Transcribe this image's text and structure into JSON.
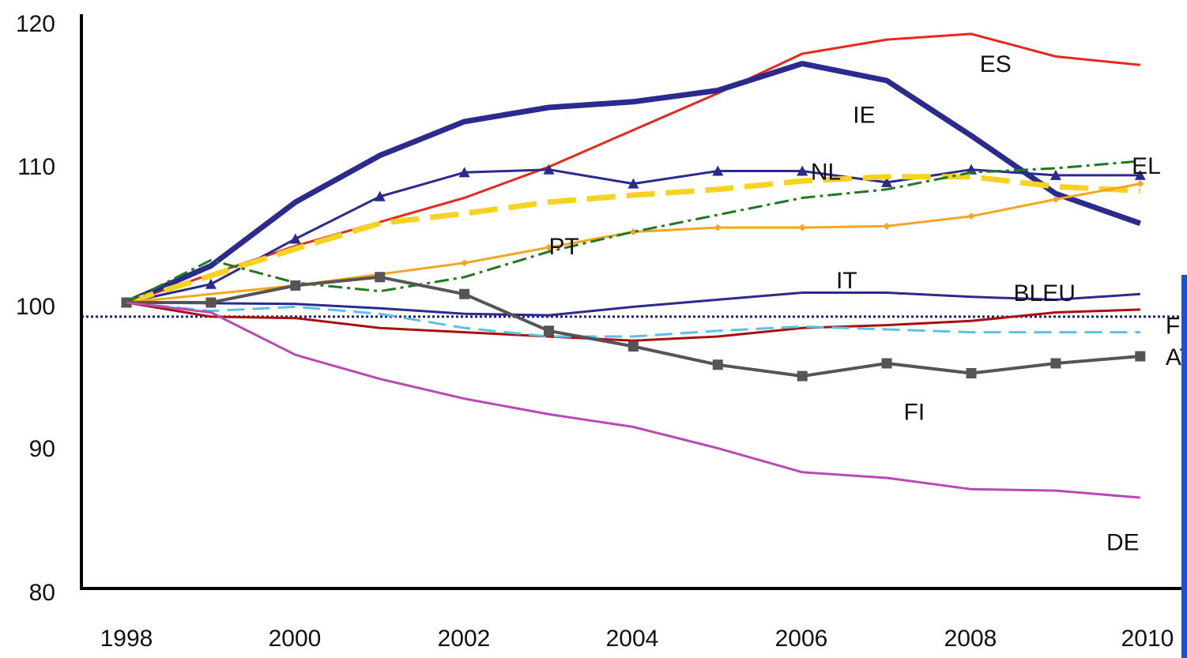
{
  "chart_data": {
    "type": "line",
    "title": "",
    "xlabel": "",
    "ylabel": "",
    "xlim": [
      1998,
      2010
    ],
    "ylim": [
      80,
      120
    ],
    "x_ticks": [
      "1998",
      "2000",
      "2002",
      "2004",
      "2006",
      "2008",
      "2010"
    ],
    "y_ticks": [
      "80",
      "90",
      "100",
      "110",
      "120"
    ],
    "reference_line": {
      "y": 99,
      "color": "#1c1c8c",
      "style": "dotted"
    },
    "series": [
      {
        "name": "ES",
        "color": "#e8281c",
        "width": 3,
        "dash": "",
        "marker": "none",
        "points": [
          [
            1998,
            100
          ],
          [
            2000,
            104
          ],
          [
            2002,
            107.4
          ],
          [
            2003,
            109.6
          ],
          [
            2004,
            112.2
          ],
          [
            2005,
            114.8
          ],
          [
            2006,
            117.6
          ],
          [
            2007,
            118.6
          ],
          [
            2008,
            119
          ],
          [
            2009,
            117.4
          ],
          [
            2010,
            116.8
          ]
        ]
      },
      {
        "name": "IE",
        "color": "#2b2a8f",
        "width": 7,
        "dash": "",
        "marker": "none",
        "points": [
          [
            1998,
            100
          ],
          [
            1999,
            102.6
          ],
          [
            2000,
            107.1
          ],
          [
            2001,
            110.4
          ],
          [
            2002,
            112.8
          ],
          [
            2003,
            113.8
          ],
          [
            2004,
            114.2
          ],
          [
            2005,
            115
          ],
          [
            2006,
            116.9
          ],
          [
            2007,
            115.7
          ],
          [
            2008,
            111.8
          ],
          [
            2009,
            107.7
          ],
          [
            2010,
            105.6
          ]
        ]
      },
      {
        "name": "EL",
        "color": "#2b2a8f",
        "width": 3,
        "dash": "",
        "marker": "triangle",
        "points": [
          [
            1998,
            100
          ],
          [
            1999,
            101.3
          ],
          [
            2000,
            104.5
          ],
          [
            2001,
            107.5
          ],
          [
            2002,
            109.2
          ],
          [
            2003,
            109.4
          ],
          [
            2004,
            108.4
          ],
          [
            2005,
            109.3
          ],
          [
            2006,
            109.3
          ],
          [
            2007,
            108.5
          ],
          [
            2008,
            109.4
          ],
          [
            2009,
            109
          ],
          [
            2010,
            109
          ]
        ]
      },
      {
        "name": "NL",
        "color": "#f5d31e",
        "width": 7,
        "dash": "36 14",
        "marker": "none",
        "points": [
          [
            1998,
            100
          ],
          [
            2000,
            103.8
          ],
          [
            2001,
            105.6
          ],
          [
            2002,
            106.3
          ],
          [
            2003,
            107.1
          ],
          [
            2004,
            107.6
          ],
          [
            2005,
            108
          ],
          [
            2006,
            108.6
          ],
          [
            2007,
            108.9
          ],
          [
            2008,
            108.9
          ],
          [
            2009,
            108.2
          ],
          [
            2010,
            107.9
          ]
        ]
      },
      {
        "name": "PT",
        "color": "#f5a51f",
        "width": 3,
        "dash": "",
        "marker": "diamond",
        "points": [
          [
            1998,
            100
          ],
          [
            2000,
            101.2
          ],
          [
            2002,
            102.8
          ],
          [
            2003,
            103.9
          ],
          [
            2004,
            105
          ],
          [
            2005,
            105.3
          ],
          [
            2006,
            105.3
          ],
          [
            2007,
            105.4
          ],
          [
            2008,
            106.1
          ],
          [
            2009,
            107.3
          ],
          [
            2010,
            108.4
          ]
        ]
      },
      {
        "name": "",
        "color": "#1f7a1f",
        "width": 3,
        "dash": "18 6 4 6",
        "marker": "none",
        "points": [
          [
            1998,
            100
          ],
          [
            1999,
            103
          ],
          [
            2000,
            101.4
          ],
          [
            2001,
            100.8
          ],
          [
            2002,
            101.8
          ],
          [
            2003,
            103.6
          ],
          [
            2004,
            105
          ],
          [
            2005,
            106.2
          ],
          [
            2006,
            107.4
          ],
          [
            2007,
            108
          ],
          [
            2008,
            109.2
          ],
          [
            2009,
            109.5
          ],
          [
            2010,
            110
          ]
        ]
      },
      {
        "name": "IT",
        "color": "#2b2a8f",
        "width": 3,
        "dash": "",
        "marker": "none",
        "points": [
          [
            1998,
            100
          ],
          [
            2000,
            99.9
          ],
          [
            2001,
            99.6
          ],
          [
            2002,
            99.2
          ],
          [
            2003,
            99.1
          ],
          [
            2004,
            99.7
          ],
          [
            2005,
            100.2
          ],
          [
            2006,
            100.7
          ],
          [
            2007,
            100.7
          ],
          [
            2008,
            100.4
          ],
          [
            2009,
            100.2
          ],
          [
            2010,
            100.6
          ]
        ]
      },
      {
        "name": "FR",
        "color": "#a81010",
        "width": 3,
        "dash": "",
        "marker": "none",
        "points": [
          [
            1998,
            100
          ],
          [
            1999,
            99
          ],
          [
            2000,
            98.9
          ],
          [
            2001,
            98.2
          ],
          [
            2002,
            97.9
          ],
          [
            2003,
            97.6
          ],
          [
            2004,
            97.3
          ],
          [
            2005,
            97.6
          ],
          [
            2006,
            98.2
          ],
          [
            2007,
            98.4
          ],
          [
            2008,
            98.7
          ],
          [
            2009,
            99.3
          ],
          [
            2010,
            99.5
          ]
        ]
      },
      {
        "name": "BLEU",
        "color": "#5bc0e8",
        "width": 3,
        "dash": "22 10",
        "marker": "none",
        "points": [
          [
            1998,
            100
          ],
          [
            1999,
            99.4
          ],
          [
            2000,
            99.7
          ],
          [
            2001,
            99.2
          ],
          [
            2002,
            98.2
          ],
          [
            2003,
            97.6
          ],
          [
            2004,
            97.6
          ],
          [
            2005,
            98
          ],
          [
            2006,
            98.3
          ],
          [
            2007,
            98.1
          ],
          [
            2008,
            97.9
          ],
          [
            2009,
            97.9
          ],
          [
            2010,
            97.9
          ]
        ]
      },
      {
        "name": "FI",
        "color": "#555555",
        "width": 4,
        "dash": "",
        "marker": "square",
        "points": [
          [
            1998,
            100
          ],
          [
            1999,
            100
          ],
          [
            2000,
            101.2
          ],
          [
            2001,
            101.8
          ],
          [
            2002,
            100.6
          ],
          [
            2003,
            98
          ],
          [
            2004,
            96.9
          ],
          [
            2005,
            95.6
          ],
          [
            2006,
            94.8
          ],
          [
            2007,
            95.7
          ],
          [
            2008,
            95
          ],
          [
            2009,
            95.7
          ],
          [
            2010,
            96.2
          ]
        ]
      },
      {
        "name": "DE",
        "color": "#b84ab5",
        "width": 3,
        "dash": "",
        "marker": "none",
        "points": [
          [
            1998,
            100
          ],
          [
            1999,
            99.3
          ],
          [
            2000,
            96.3
          ],
          [
            2001,
            94.6
          ],
          [
            2002,
            93.2
          ],
          [
            2003,
            92.1
          ],
          [
            2004,
            91.2
          ],
          [
            2005,
            89.7
          ],
          [
            2006,
            88
          ],
          [
            2007,
            87.6
          ],
          [
            2008,
            86.8
          ],
          [
            2009,
            86.7
          ],
          [
            2010,
            86.2
          ]
        ]
      }
    ],
    "annotations": [
      {
        "text": "ES",
        "x": 2008.1,
        "y": 116.3
      },
      {
        "text": "IE",
        "x": 2006.6,
        "y": 112.7
      },
      {
        "text": "NL",
        "x": 2006.1,
        "y": 108.7
      },
      {
        "text": "EL",
        "x": 2009.9,
        "y": 109.1
      },
      {
        "text": "PT",
        "x": 2003.0,
        "y": 103.4
      },
      {
        "text": "IT",
        "x": 2006.4,
        "y": 101
      },
      {
        "text": "BLEU",
        "x": 2008.5,
        "y": 100.1
      },
      {
        "text": "FR",
        "x": 2010.3,
        "y": 97.8
      },
      {
        "text": "AT",
        "x": 2010.3,
        "y": 95.6
      },
      {
        "text": "FI",
        "x": 2007.2,
        "y": 91.7
      },
      {
        "text": "DE",
        "x": 2009.6,
        "y": 82.5
      }
    ]
  }
}
